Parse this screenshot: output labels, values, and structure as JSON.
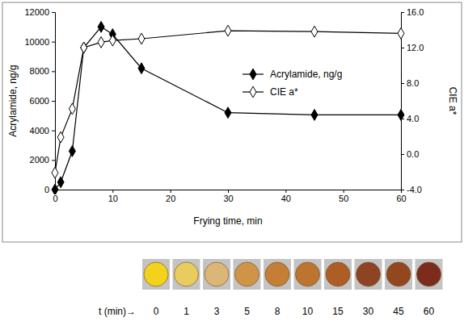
{
  "chart_data": {
    "type": "line",
    "x_label": "Frying time, min",
    "y_label": "Acrylamide, ng/g",
    "y2_label": "CIE a*",
    "x": [
      0,
      1,
      3,
      5,
      8,
      10,
      15,
      30,
      45,
      60
    ],
    "series": [
      {
        "name": "Acrylamide, ng/g",
        "color": "#000000",
        "marker": "diamond",
        "line_style": "solid",
        "values": [
          0,
          500,
          2600,
          9600,
          11000,
          10500,
          8200,
          5200,
          5050,
          5050
        ]
      },
      {
        "name": "CIE a*",
        "color": "#000000",
        "marker": "open_diamond",
        "line_style": "solid",
        "axis": "y2",
        "values": [
          -2.1,
          1.9,
          5.1,
          12.0,
          12.6,
          12.8,
          13.0,
          13.9,
          13.8,
          13.6
        ]
      }
    ],
    "xlim": [
      0,
      60
    ],
    "xticks": [
      0,
      10,
      20,
      30,
      40,
      50,
      60
    ],
    "ylim": [
      0,
      12000
    ],
    "yticks": [
      0,
      2000,
      4000,
      6000,
      8000,
      10000,
      12000
    ],
    "y2lim": [
      -4,
      16
    ],
    "y2ticks": [
      {
        "value": -4,
        "label": "-4.0"
      },
      {
        "value": 0,
        "label": "0.0"
      },
      {
        "value": 4,
        "label": "4.0"
      },
      {
        "value": 8,
        "label": "8.0"
      },
      {
        "value": 12,
        "label": "12.0"
      },
      {
        "value": 16,
        "label": "16.0"
      }
    ],
    "grid": false,
    "legend": "upper right"
  },
  "photo_strip": {
    "label": "t (min)→",
    "times": [
      0,
      1,
      3,
      5,
      8,
      10,
      15,
      30,
      45,
      60
    ],
    "colors": [
      "#f2d21a",
      "#e9cc5e",
      "#dcb676",
      "#cf9448",
      "#c47e36",
      "#bd742e",
      "#ad5e24",
      "#8e4422",
      "#94471f",
      "#7c2c1a"
    ]
  }
}
